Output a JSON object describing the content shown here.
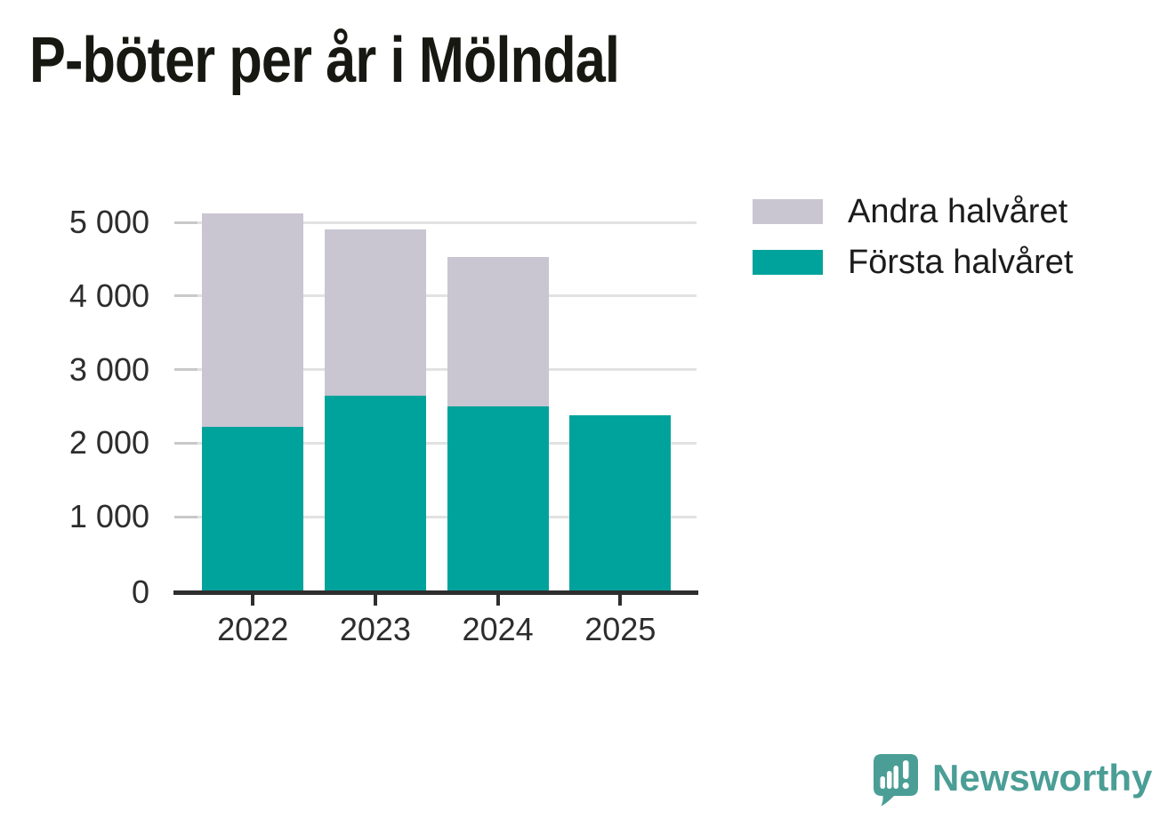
{
  "title": "P-böter per år i Mölndal",
  "chart_data": {
    "type": "bar",
    "stacked": true,
    "title": "P-böter per år i Mölndal",
    "categories": [
      "2022",
      "2023",
      "2024",
      "2025"
    ],
    "series": [
      {
        "name": "Första halvåret",
        "color": "#00a39b",
        "values": [
          2220,
          2645,
          2505,
          2375
        ]
      },
      {
        "name": "Andra halvåret",
        "color": "#c9c5d1",
        "values": [
          2905,
          2255,
          2020,
          0
        ]
      }
    ],
    "totals": [
      5125,
      4900,
      4525,
      2375
    ],
    "xlabel": "",
    "ylabel": "",
    "ylim": [
      0,
      5000
    ],
    "yticks": [
      0,
      1000,
      2000,
      3000,
      4000,
      5000
    ],
    "ytick_labels": [
      "0",
      "1 000",
      "2 000",
      "3 000",
      "4 000",
      "5 000"
    ],
    "grid": "horizontal",
    "legend_position": "top-right"
  },
  "legend": {
    "items": [
      {
        "label": "Andra halvåret",
        "color": "#c9c5d1"
      },
      {
        "label": "Första halvåret",
        "color": "#00a39b"
      }
    ]
  },
  "branding": {
    "logo_text": "Newsworthy",
    "logo_color": "#4a9e96"
  },
  "colors": {
    "bar_first_half": "#00a39b",
    "bar_second_half": "#c9c5d1",
    "axis": "#2e2e2e",
    "gridline": "#e2e2e2",
    "tick_dash": "#c9c9c9",
    "label_text": "#2d2d2d",
    "title_text": "#181813",
    "background": "#ffffff"
  }
}
